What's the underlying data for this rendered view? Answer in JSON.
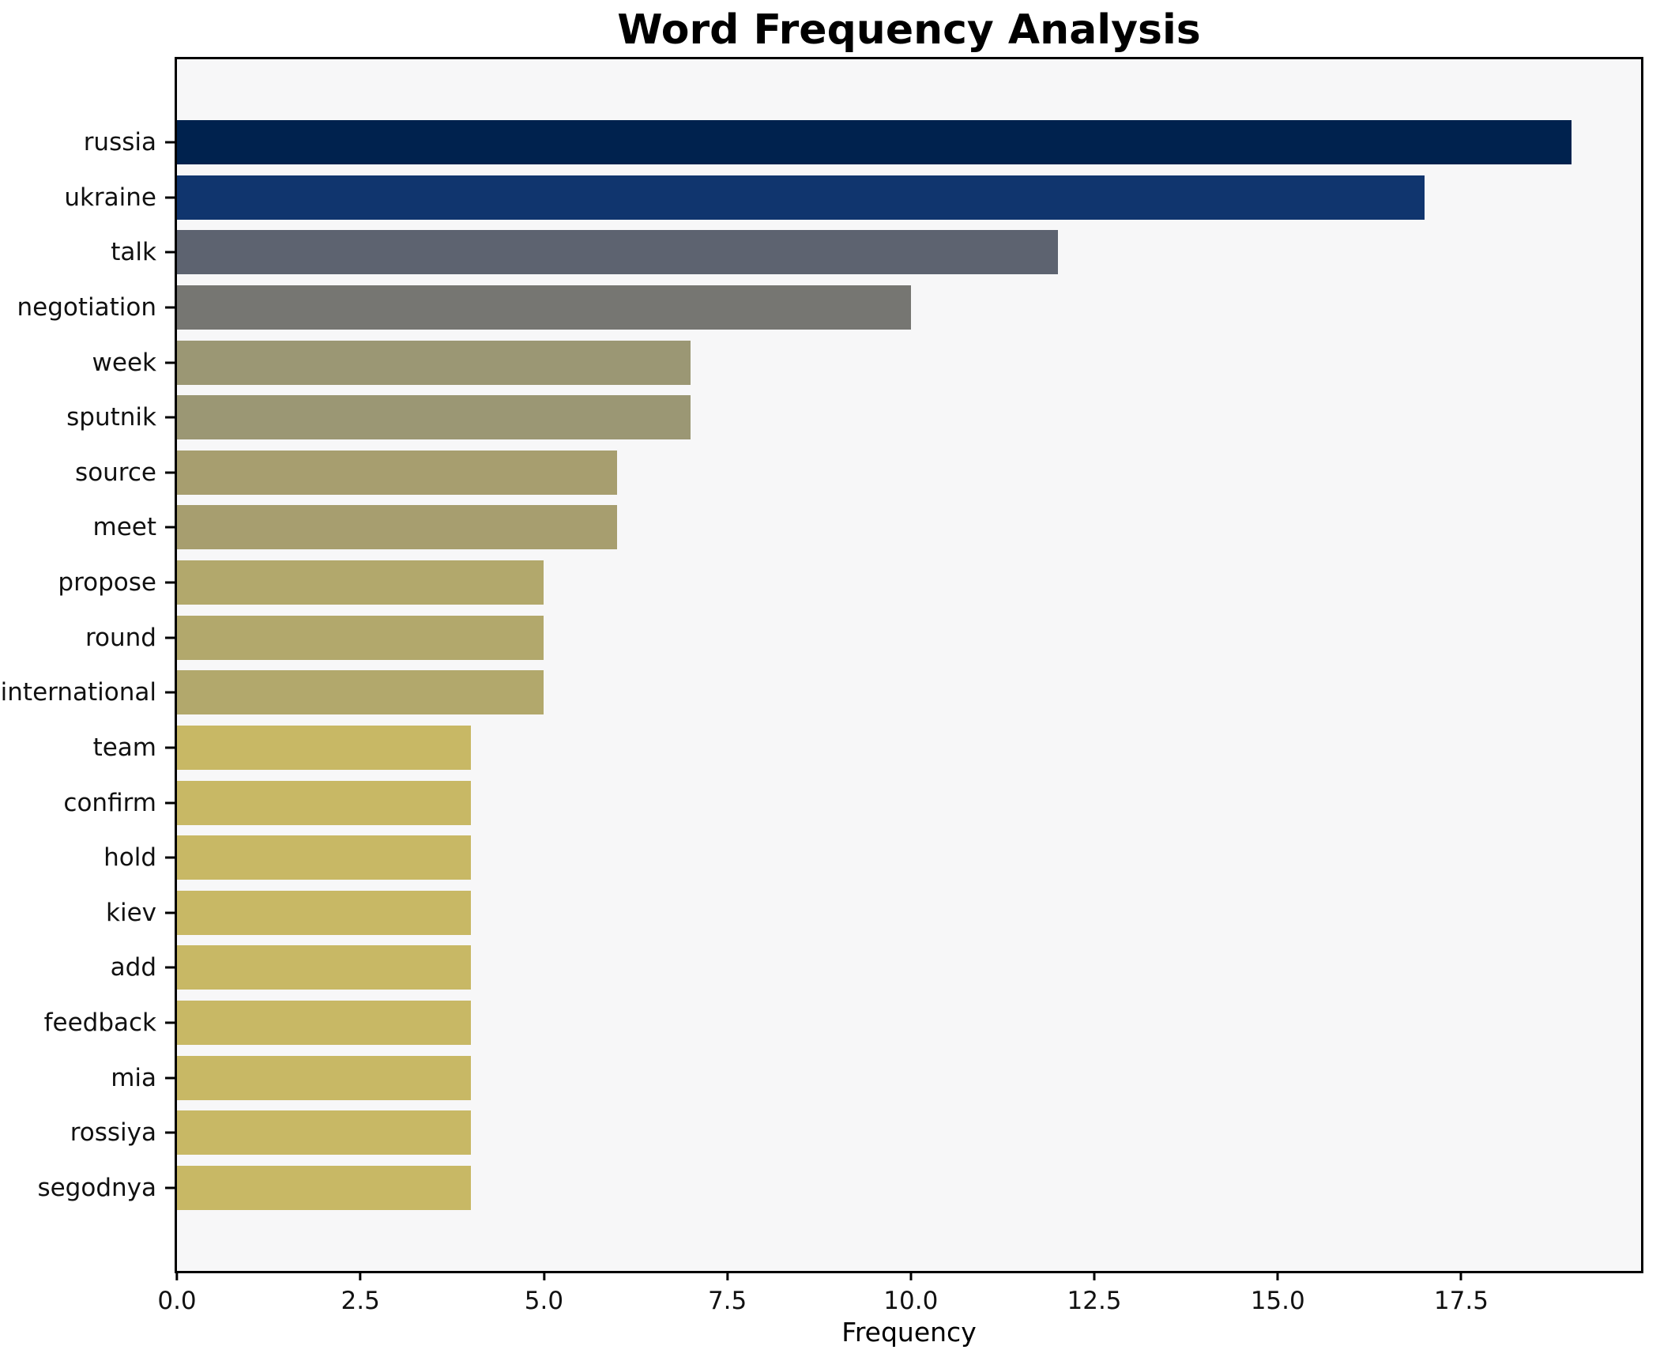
{
  "figure": {
    "background": "#ffffff",
    "text_color": "#000000"
  },
  "chart_data": {
    "type": "bar",
    "orientation": "horizontal",
    "title": "Word Frequency Analysis",
    "xlabel": "Frequency",
    "ylabel": "",
    "xlim": [
      0,
      19.95
    ],
    "grid": false,
    "legend": false,
    "plot_background": "#f7f7f8",
    "axis_color": "#000000",
    "colormap": "cividis (darker blue = higher frequency)",
    "x_ticks": [
      {
        "label": "0.0",
        "value": 0
      },
      {
        "label": "2.5",
        "value": 2.5
      },
      {
        "label": "5.0",
        "value": 5
      },
      {
        "label": "7.5",
        "value": 7.5
      },
      {
        "label": "10.0",
        "value": 10
      },
      {
        "label": "12.5",
        "value": 12.5
      },
      {
        "label": "15.0",
        "value": 15
      },
      {
        "label": "17.5",
        "value": 17.5
      }
    ],
    "categories": [
      "russia",
      "ukraine",
      "talk",
      "negotiation",
      "week",
      "sputnik",
      "source",
      "meet",
      "propose",
      "round",
      "international",
      "team",
      "confirm",
      "hold",
      "kiev",
      "add",
      "feedback",
      "mia",
      "rossiya",
      "segodnya"
    ],
    "values": [
      19,
      17,
      12,
      10,
      7,
      7,
      6,
      6,
      5,
      5,
      5,
      4,
      4,
      4,
      4,
      4,
      4,
      4,
      4,
      4
    ],
    "bars": [
      {
        "label": "russia",
        "value": 19,
        "color": "#00224e"
      },
      {
        "label": "ukraine",
        "value": 17,
        "color": "#10356e"
      },
      {
        "label": "talk",
        "value": 12,
        "color": "#5d6370"
      },
      {
        "label": "negotiation",
        "value": 10,
        "color": "#767672"
      },
      {
        "label": "week",
        "value": 7,
        "color": "#9b9774"
      },
      {
        "label": "sputnik",
        "value": 7,
        "color": "#9b9774"
      },
      {
        "label": "source",
        "value": 6,
        "color": "#a79e6f"
      },
      {
        "label": "meet",
        "value": 6,
        "color": "#a79e6f"
      },
      {
        "label": "propose",
        "value": 5,
        "color": "#b2a86c"
      },
      {
        "label": "round",
        "value": 5,
        "color": "#b2a86c"
      },
      {
        "label": "international",
        "value": 5,
        "color": "#b2a86c"
      },
      {
        "label": "team",
        "value": 4,
        "color": "#c8b865"
      },
      {
        "label": "confirm",
        "value": 4,
        "color": "#c8b865"
      },
      {
        "label": "hold",
        "value": 4,
        "color": "#c8b865"
      },
      {
        "label": "kiev",
        "value": 4,
        "color": "#c8b865"
      },
      {
        "label": "add",
        "value": 4,
        "color": "#c8b865"
      },
      {
        "label": "feedback",
        "value": 4,
        "color": "#c8b865"
      },
      {
        "label": "mia",
        "value": 4,
        "color": "#c8b865"
      },
      {
        "label": "rossiya",
        "value": 4,
        "color": "#c8b865"
      },
      {
        "label": "segodnya",
        "value": 4,
        "color": "#c8b865"
      }
    ]
  }
}
